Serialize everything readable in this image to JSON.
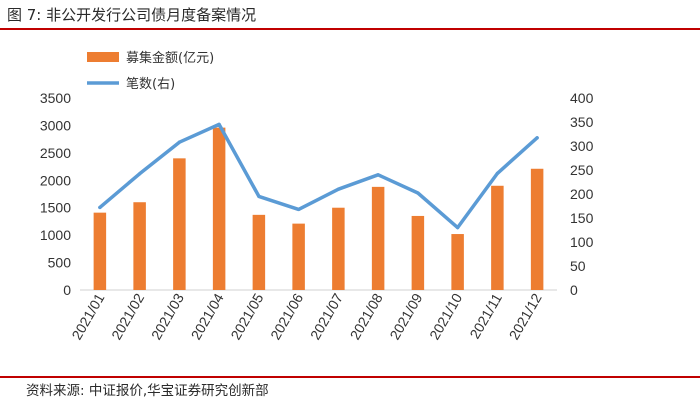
{
  "header": {
    "title": "图 7:  非公开发行公司债月度备案情况"
  },
  "footer": {
    "source": "资料来源:  中证报价,华宝证券研究创新部"
  },
  "chart_data": {
    "type": "bar+line",
    "categories": [
      "2021/01",
      "2021/02",
      "2021/03",
      "2021/04",
      "2021/05",
      "2021/06",
      "2021/07",
      "2021/08",
      "2021/09",
      "2021/10",
      "2021/11",
      "2021/12"
    ],
    "series": [
      {
        "name": "募集金额(亿元)",
        "type": "bar",
        "axis": "left",
        "color": "#ED7D31",
        "values": [
          1410,
          1600,
          2400,
          2960,
          1370,
          1210,
          1500,
          1880,
          1350,
          1020,
          1900,
          2210
        ]
      },
      {
        "name": "笔数(右)",
        "type": "line",
        "axis": "right",
        "color": "#5B9BD5",
        "values": [
          172,
          242,
          308,
          345,
          195,
          168,
          210,
          240,
          202,
          130,
          243,
          317
        ]
      }
    ],
    "y_left": {
      "min": 0,
      "max": 3500,
      "step": 500,
      "ticks": [
        "0",
        "500",
        "1000",
        "1500",
        "2000",
        "2500",
        "3000",
        "3500"
      ]
    },
    "y_right": {
      "min": 0,
      "max": 400,
      "step": 50,
      "ticks": [
        "0",
        "50",
        "100",
        "150",
        "200",
        "250",
        "300",
        "350",
        "400"
      ]
    },
    "legend_position": "top-left",
    "grid": false
  }
}
